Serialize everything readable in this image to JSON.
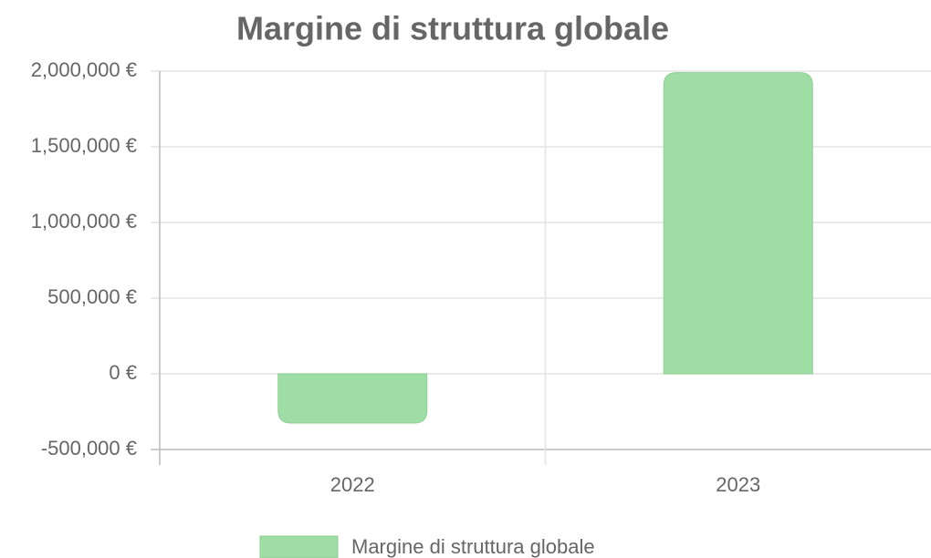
{
  "chart_data": {
    "type": "bar",
    "title": "Margine di struttura globale",
    "categories": [
      "2022",
      "2023"
    ],
    "series": [
      {
        "name": "Margine di struttura globale",
        "color": "#9edda3",
        "values": [
          -325000,
          1990000
        ]
      }
    ],
    "ylim": [
      -500000,
      2000000
    ],
    "yticks": [
      {
        "value": -500000,
        "label": "-500,000 €"
      },
      {
        "value": 0,
        "label": "0 €"
      },
      {
        "value": 500000,
        "label": "500,000 €"
      },
      {
        "value": 1000000,
        "label": "1,000,000 €"
      },
      {
        "value": 1500000,
        "label": "1,500,000 €"
      },
      {
        "value": 2000000,
        "label": "2,000,000 €"
      }
    ],
    "grid": true,
    "legend": "bottom"
  }
}
